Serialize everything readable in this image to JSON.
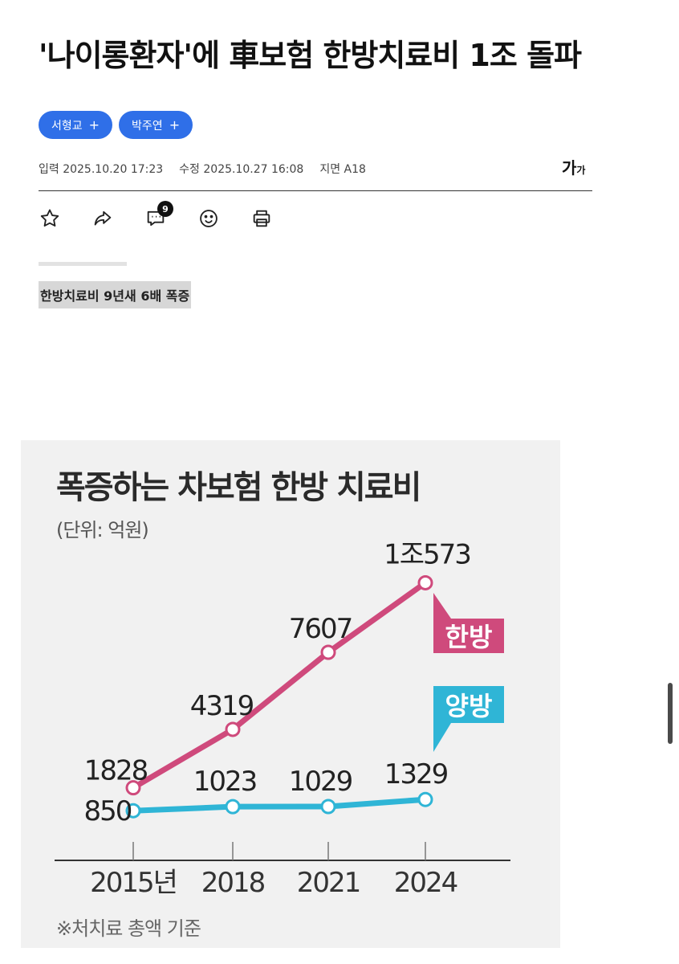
{
  "article": {
    "headline": "'나이롱환자'에 車보험 한방치료비 1조 돌파",
    "reporters": [
      "서형교",
      "박주연"
    ],
    "reporter_plus": "+",
    "meta": {
      "input": "입력 2025.10.20 17:23",
      "modified": "수정 2025.10.27 16:08",
      "page": "지면 A18"
    },
    "font_size_label": "가",
    "font_size_label_small": "가",
    "comment_count": "9",
    "subhead": "한방치료비 9년새 6배 폭증"
  },
  "toolbar": {
    "icons": [
      "star-icon",
      "share-icon",
      "comment-icon",
      "emoji-icon",
      "print-icon"
    ]
  },
  "infographic": {
    "title": "폭증하는 차보험 한방 치료비",
    "unit": "(단위: 억원)",
    "note": "※처치료 총액 기준"
  },
  "chart_data": {
    "type": "line",
    "categories": [
      "2015년",
      "2018",
      "2021",
      "2024"
    ],
    "series": [
      {
        "name": "한방",
        "values": [
          1828,
          4319,
          7607,
          10573
        ],
        "labels": [
          "1828",
          "4319",
          "7607",
          "1조573"
        ],
        "color": "#cf4a7c"
      },
      {
        "name": "양방",
        "values": [
          850,
          1023,
          1029,
          1329
        ],
        "labels": [
          "850",
          "1023",
          "1029",
          "1329"
        ],
        "color": "#2fb5d6"
      }
    ],
    "title": "폭증하는 차보험 한방 치료비",
    "unit": "(단위: 억원)",
    "ylim": [
      0,
      11000
    ],
    "grid": false,
    "legend": "inline-right"
  },
  "colors": {
    "accent": "#2f6fe8",
    "hanbang": "#cf4a7c",
    "yangbang": "#2fb5d6"
  }
}
